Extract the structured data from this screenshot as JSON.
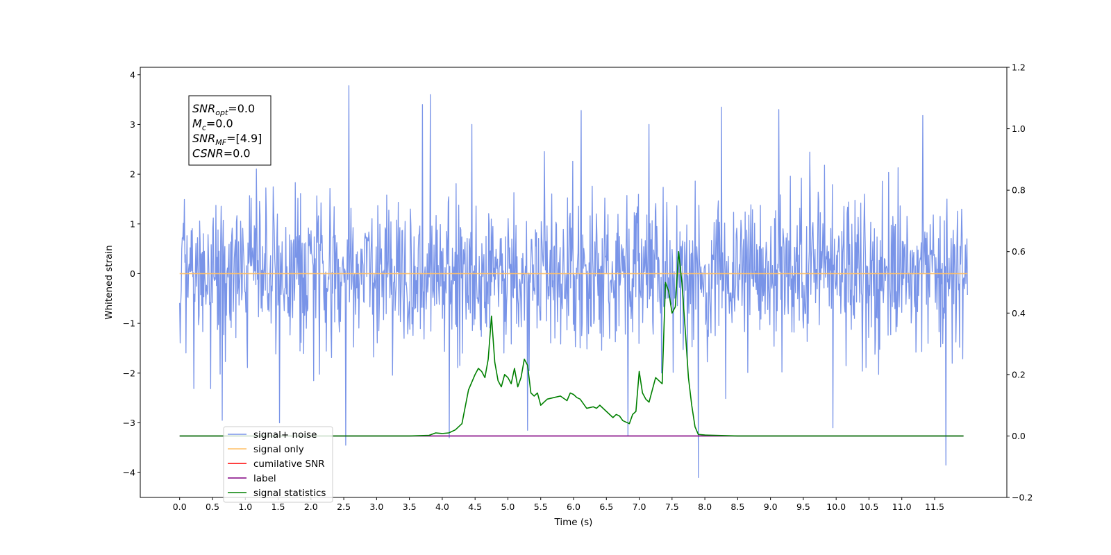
{
  "chart_data": {
    "type": "line",
    "xlabel": "Time (s)",
    "ylabel": "Whitened strain",
    "xlim": [
      -0.6,
      12.6
    ],
    "ylim": [
      -4.5,
      4.15
    ],
    "ylim_right": [
      -0.2,
      1.2
    ],
    "x_ticks": [
      0.0,
      0.5,
      1.0,
      1.5,
      2.0,
      2.5,
      3.0,
      3.5,
      4.0,
      4.5,
      5.0,
      5.5,
      6.0,
      6.5,
      7.0,
      7.5,
      8.0,
      8.5,
      9.0,
      9.5,
      10.0,
      10.5,
      11.0,
      11.5
    ],
    "x_tick_labels": [
      "0.0",
      "0.5",
      "1.0",
      "1.5",
      "2.0",
      "2.5",
      "3.0",
      "3.5",
      "4.0",
      "4.5",
      "5.0",
      "5.5",
      "6.0",
      "6.5",
      "7.0",
      "7.5",
      "8.0",
      "8.5",
      "9.0",
      "9.5",
      "10.0",
      "10.5",
      "11.0",
      "11.5"
    ],
    "y_ticks": [
      -4,
      -3,
      -2,
      -1,
      0,
      1,
      2,
      3,
      4
    ],
    "y_tick_labels": [
      "−4",
      "−3",
      "−2",
      "−1",
      "0",
      "1",
      "2",
      "3",
      "4"
    ],
    "y_right_ticks": [
      -0.2,
      0.0,
      0.2,
      0.4,
      0.6,
      0.8,
      1.0,
      1.2
    ],
    "y_right_tick_labels": [
      "−0.2",
      "0.0",
      "0.2",
      "0.4",
      "0.6",
      "0.8",
      "1.0",
      "1.2"
    ],
    "grid": false,
    "legend_position": "lower-left",
    "series": [
      {
        "name": "signal+ noise",
        "axis": "left",
        "color": "#7994e8",
        "x_range": [
          0.0,
          12.0
        ],
        "sample_count": 1500,
        "approx_std": 0.75,
        "approx_range": [
          -4.1,
          3.8
        ],
        "spikes": [
          {
            "x": 2.58,
            "y": 3.78
          },
          {
            "x": 3.82,
            "y": 3.6
          },
          {
            "x": 3.7,
            "y": 3.4
          },
          {
            "x": 2.53,
            "y": -3.45
          },
          {
            "x": 4.11,
            "y": -3.3
          },
          {
            "x": 7.9,
            "y": -4.1
          },
          {
            "x": 11.67,
            "y": -3.85
          },
          {
            "x": 11.32,
            "y": 3.18
          },
          {
            "x": 8.25,
            "y": 3.35
          },
          {
            "x": 6.12,
            "y": 3.28
          },
          {
            "x": 9.13,
            "y": 3.3
          },
          {
            "x": 6.83,
            "y": -3.25
          },
          {
            "x": 5.3,
            "y": -3.15
          },
          {
            "x": 9.95,
            "y": -3.1
          },
          {
            "x": 1.52,
            "y": -3.0
          },
          {
            "x": 0.65,
            "y": -2.95
          },
          {
            "x": 7.15,
            "y": 3.0
          },
          {
            "x": 4.45,
            "y": 3.0
          }
        ]
      },
      {
        "name": "signal only",
        "axis": "left",
        "color": "#ffbf66",
        "x": [
          0.0,
          12.0
        ],
        "y": [
          0.0,
          0.0
        ]
      },
      {
        "name": "cumilative SNR",
        "axis": "right",
        "color": "#ff0000",
        "x": [],
        "y": []
      },
      {
        "name": "label",
        "axis": "right",
        "color": "#800080",
        "x": [
          0.0,
          11.94
        ],
        "y": [
          0.0,
          0.0
        ]
      },
      {
        "name": "signal statistics",
        "axis": "right",
        "color": "#008000",
        "x": [
          0.0,
          3.5,
          3.8,
          3.9,
          4.0,
          4.1,
          4.2,
          4.3,
          4.4,
          4.5,
          4.55,
          4.6,
          4.65,
          4.7,
          4.75,
          4.8,
          4.85,
          4.9,
          4.95,
          5.0,
          5.05,
          5.1,
          5.15,
          5.2,
          5.25,
          5.3,
          5.35,
          5.4,
          5.45,
          5.5,
          5.55,
          5.6,
          5.7,
          5.8,
          5.9,
          5.95,
          6.0,
          6.05,
          6.1,
          6.2,
          6.3,
          6.35,
          6.4,
          6.5,
          6.6,
          6.65,
          6.7,
          6.75,
          6.85,
          6.9,
          6.95,
          7.0,
          7.05,
          7.1,
          7.15,
          7.2,
          7.25,
          7.3,
          7.35,
          7.4,
          7.45,
          7.5,
          7.55,
          7.6,
          7.65,
          7.7,
          7.75,
          7.8,
          7.85,
          7.9,
          8.0,
          8.5,
          9.0,
          9.5,
          10.0,
          10.5,
          11.0,
          11.94
        ],
        "y": [
          0.0,
          0.0,
          0.002,
          0.01,
          0.008,
          0.01,
          0.02,
          0.04,
          0.15,
          0.2,
          0.22,
          0.21,
          0.19,
          0.25,
          0.39,
          0.24,
          0.18,
          0.16,
          0.2,
          0.19,
          0.17,
          0.22,
          0.16,
          0.19,
          0.25,
          0.23,
          0.14,
          0.13,
          0.14,
          0.1,
          0.11,
          0.12,
          0.125,
          0.13,
          0.115,
          0.14,
          0.135,
          0.125,
          0.12,
          0.09,
          0.095,
          0.09,
          0.1,
          0.08,
          0.06,
          0.07,
          0.065,
          0.05,
          0.04,
          0.07,
          0.08,
          0.21,
          0.14,
          0.12,
          0.11,
          0.15,
          0.19,
          0.18,
          0.17,
          0.5,
          0.47,
          0.4,
          0.42,
          0.6,
          0.5,
          0.35,
          0.19,
          0.1,
          0.03,
          0.005,
          0.003,
          0.0,
          0.0,
          0.0,
          0.0,
          0.0,
          0.0,
          0.0
        ]
      }
    ],
    "legend": [
      "signal+ noise",
      "signal only",
      "cumilative SNR",
      "label",
      "signal statistics"
    ],
    "annotation": {
      "lines": [
        {
          "base": "SNR",
          "sub": "opt",
          "value": "=0.0"
        },
        {
          "base": "M",
          "sub": "c",
          "value": "=0.0"
        },
        {
          "base": "SNR",
          "sub": "MF",
          "value": "=[4.9]"
        },
        {
          "base": "CSNR",
          "sub": "",
          "value": "=0.0"
        }
      ]
    }
  }
}
